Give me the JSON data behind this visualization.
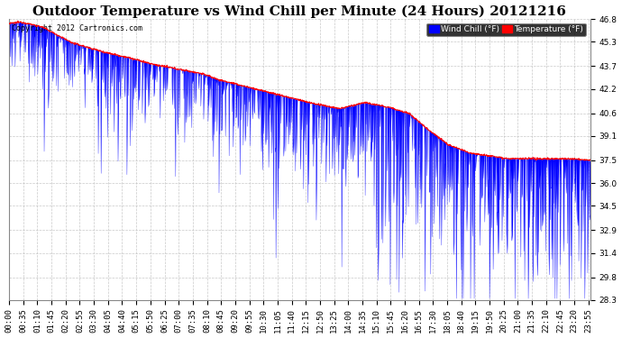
{
  "title": "Outdoor Temperature vs Wind Chill per Minute (24 Hours) 20121216",
  "copyright_text": "Copyright 2012 Cartronics.com",
  "legend_labels": [
    "Wind Chill (°F)",
    "Temperature (°F)"
  ],
  "legend_colors": [
    "blue",
    "red"
  ],
  "legend_bg": "black",
  "ylim_min": 28.3,
  "ylim_max": 46.8,
  "yticks": [
    28.3,
    29.8,
    31.4,
    32.9,
    34.5,
    36.0,
    37.5,
    39.1,
    40.6,
    42.2,
    43.7,
    45.3,
    46.8
  ],
  "background_color": "#ffffff",
  "plot_bg_color": "#ffffff",
  "grid_color": "#bbbbbb",
  "temp_color": "red",
  "windchill_color": "blue",
  "title_fontsize": 11,
  "tick_fontsize": 6.5,
  "copyright_fontsize": 6,
  "num_minutes": 1440,
  "xtick_step": 35,
  "figwidth": 6.9,
  "figheight": 3.75,
  "dpi": 100
}
